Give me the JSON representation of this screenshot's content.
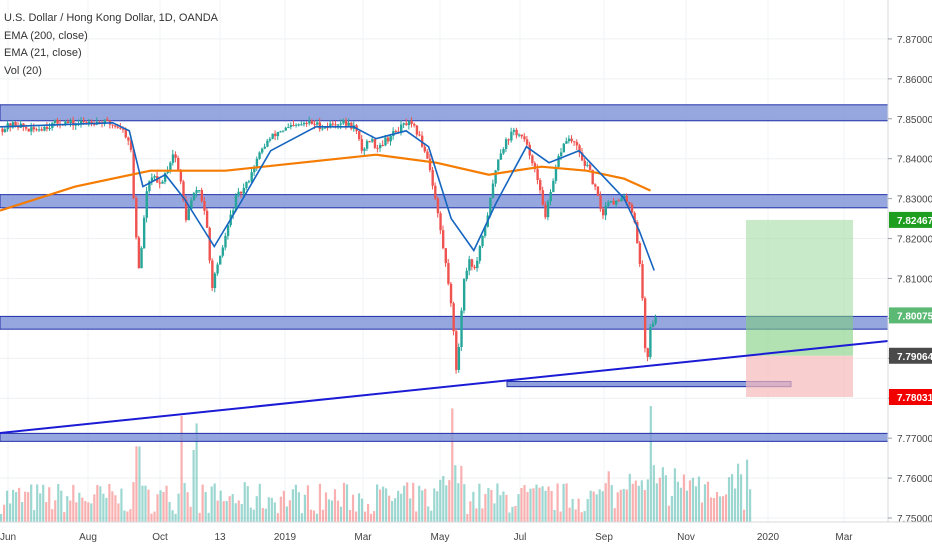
{
  "legend": {
    "symbol": "U.S. Dollar / Hong Kong Dollar, 1D, OANDA",
    "ema200": "EMA (200, close)",
    "ema21": "EMA (21, close)",
    "vol": "Vol (20)"
  },
  "colors": {
    "up": "#26a69a",
    "down": "#ef5350",
    "ema200": "#f57c00",
    "ema21": "#1565c0",
    "zone_fill": "#8496d8",
    "zone_stroke": "#1f2fa8",
    "trendline": "#1b1bd6",
    "target_zone": "#a5dca5",
    "stop_zone": "#f7b9b9",
    "label_target": "#1e9e1e",
    "label_current": "#4a4a4a",
    "label_stop": "#f20000",
    "label_entry": "#5bb974"
  },
  "chart_data": {
    "type": "candlestick",
    "symbol": "U.S. Dollar / Hong Kong Dollar",
    "interval": "1D",
    "exchange": "OANDA",
    "ylim": [
      7.749,
      7.8785
    ],
    "y_ticks": [
      "7.87000",
      "7.86000",
      "7.85000",
      "7.84000",
      "7.83000",
      "7.82000",
      "7.81000",
      "7.80000",
      "7.79000",
      "7.78000",
      "7.77000",
      "7.76000",
      "7.75000"
    ],
    "x_ticks": [
      "Jun",
      "Aug",
      "Oct",
      "13",
      "2019",
      "Mar",
      "May",
      "Jul",
      "Sep",
      "Nov",
      "2020",
      "Mar"
    ],
    "price_labels": {
      "target": "7.82467",
      "entry": "7.80075",
      "current": "7.79064",
      "stop": "7.78031"
    },
    "horizontal_zones": [
      {
        "from": 7.8495,
        "to": 7.8535
      },
      {
        "from": 7.8277,
        "to": 7.831
      },
      {
        "from": 7.7973,
        "to": 7.8005
      },
      {
        "from": 7.7692,
        "to": 7.7712
      }
    ],
    "support_box": {
      "from": 7.7829,
      "to": 7.7842
    },
    "position": {
      "entry": 7.80075,
      "target": 7.82467,
      "stop": 7.78031,
      "current": 7.79064
    },
    "price_path": [
      [
        0,
        7.8475
      ],
      [
        0.02,
        7.8487
      ],
      [
        0.04,
        7.847
      ],
      [
        0.06,
        7.8482
      ],
      [
        0.08,
        7.8492
      ],
      [
        0.1,
        7.8486
      ],
      [
        0.12,
        7.8495
      ],
      [
        0.14,
        7.849
      ],
      [
        0.16,
        7.8478
      ],
      [
        0.172,
        7.844
      ],
      [
        0.178,
        7.824
      ],
      [
        0.184,
        7.811
      ],
      [
        0.192,
        7.83
      ],
      [
        0.2,
        7.836
      ],
      [
        0.21,
        7.833
      ],
      [
        0.222,
        7.838
      ],
      [
        0.23,
        7.842
      ],
      [
        0.238,
        7.835
      ],
      [
        0.246,
        7.825
      ],
      [
        0.254,
        7.83
      ],
      [
        0.262,
        7.833
      ],
      [
        0.272,
        7.826
      ],
      [
        0.28,
        7.808
      ],
      [
        0.29,
        7.814
      ],
      [
        0.3,
        7.822
      ],
      [
        0.312,
        7.83
      ],
      [
        0.325,
        7.833
      ],
      [
        0.338,
        7.839
      ],
      [
        0.352,
        7.844
      ],
      [
        0.37,
        7.847
      ],
      [
        0.39,
        7.848
      ],
      [
        0.41,
        7.849
      ],
      [
        0.43,
        7.848
      ],
      [
        0.45,
        7.8492
      ],
      [
        0.47,
        7.848
      ],
      [
        0.48,
        7.842
      ],
      [
        0.49,
        7.845
      ],
      [
        0.5,
        7.843
      ],
      [
        0.52,
        7.846
      ],
      [
        0.54,
        7.849
      ],
      [
        0.552,
        7.847
      ],
      [
        0.568,
        7.84
      ],
      [
        0.58,
        7.827
      ],
      [
        0.59,
        7.815
      ],
      [
        0.598,
        7.805
      ],
      [
        0.606,
        7.7855
      ],
      [
        0.614,
        7.808
      ],
      [
        0.622,
        7.815
      ],
      [
        0.63,
        7.812
      ],
      [
        0.64,
        7.82
      ],
      [
        0.65,
        7.829
      ],
      [
        0.66,
        7.84
      ],
      [
        0.67,
        7.844
      ],
      [
        0.682,
        7.847
      ],
      [
        0.694,
        7.845
      ],
      [
        0.706,
        7.84
      ],
      [
        0.716,
        7.832
      ],
      [
        0.724,
        7.826
      ],
      [
        0.732,
        7.832
      ],
      [
        0.742,
        7.841
      ],
      [
        0.752,
        7.845
      ],
      [
        0.762,
        7.844
      ],
      [
        0.772,
        7.84
      ],
      [
        0.782,
        7.837
      ],
      [
        0.792,
        7.831
      ],
      [
        0.8,
        7.826
      ],
      [
        0.808,
        7.83
      ],
      [
        0.818,
        7.829
      ],
      [
        0.828,
        7.83
      ],
      [
        0.836,
        7.829
      ],
      [
        0.844,
        7.823
      ],
      [
        0.852,
        7.808
      ],
      [
        0.858,
        7.787
      ],
      [
        0.864,
        7.799
      ],
      [
        0.872,
        7.8
      ]
    ],
    "series": [
      {
        "name": "EMA (200, close)",
        "values": [
          [
            0,
            7.827
          ],
          [
            0.1,
            7.833
          ],
          [
            0.2,
            7.837
          ],
          [
            0.3,
            7.837
          ],
          [
            0.4,
            7.839
          ],
          [
            0.5,
            7.841
          ],
          [
            0.58,
            7.839
          ],
          [
            0.65,
            7.836
          ],
          [
            0.72,
            7.838
          ],
          [
            0.78,
            7.837
          ],
          [
            0.83,
            7.835
          ],
          [
            0.865,
            7.832
          ]
        ]
      },
      {
        "name": "EMA (21, close)",
        "values": [
          [
            0,
            7.848
          ],
          [
            0.15,
            7.849
          ],
          [
            0.172,
            7.847
          ],
          [
            0.19,
            7.833
          ],
          [
            0.22,
            7.836
          ],
          [
            0.245,
            7.83
          ],
          [
            0.285,
            7.818
          ],
          [
            0.32,
            7.829
          ],
          [
            0.36,
            7.842
          ],
          [
            0.42,
            7.848
          ],
          [
            0.47,
            7.848
          ],
          [
            0.5,
            7.845
          ],
          [
            0.54,
            7.847
          ],
          [
            0.57,
            7.843
          ],
          [
            0.6,
            7.825
          ],
          [
            0.63,
            7.817
          ],
          [
            0.66,
            7.829
          ],
          [
            0.7,
            7.843
          ],
          [
            0.73,
            7.839
          ],
          [
            0.77,
            7.842
          ],
          [
            0.8,
            7.836
          ],
          [
            0.83,
            7.83
          ],
          [
            0.85,
            7.822
          ],
          [
            0.87,
            7.812
          ]
        ]
      }
    ],
    "volume_spikes": [
      0.182,
      0.24,
      0.258,
      0.6,
      0.864
    ]
  }
}
